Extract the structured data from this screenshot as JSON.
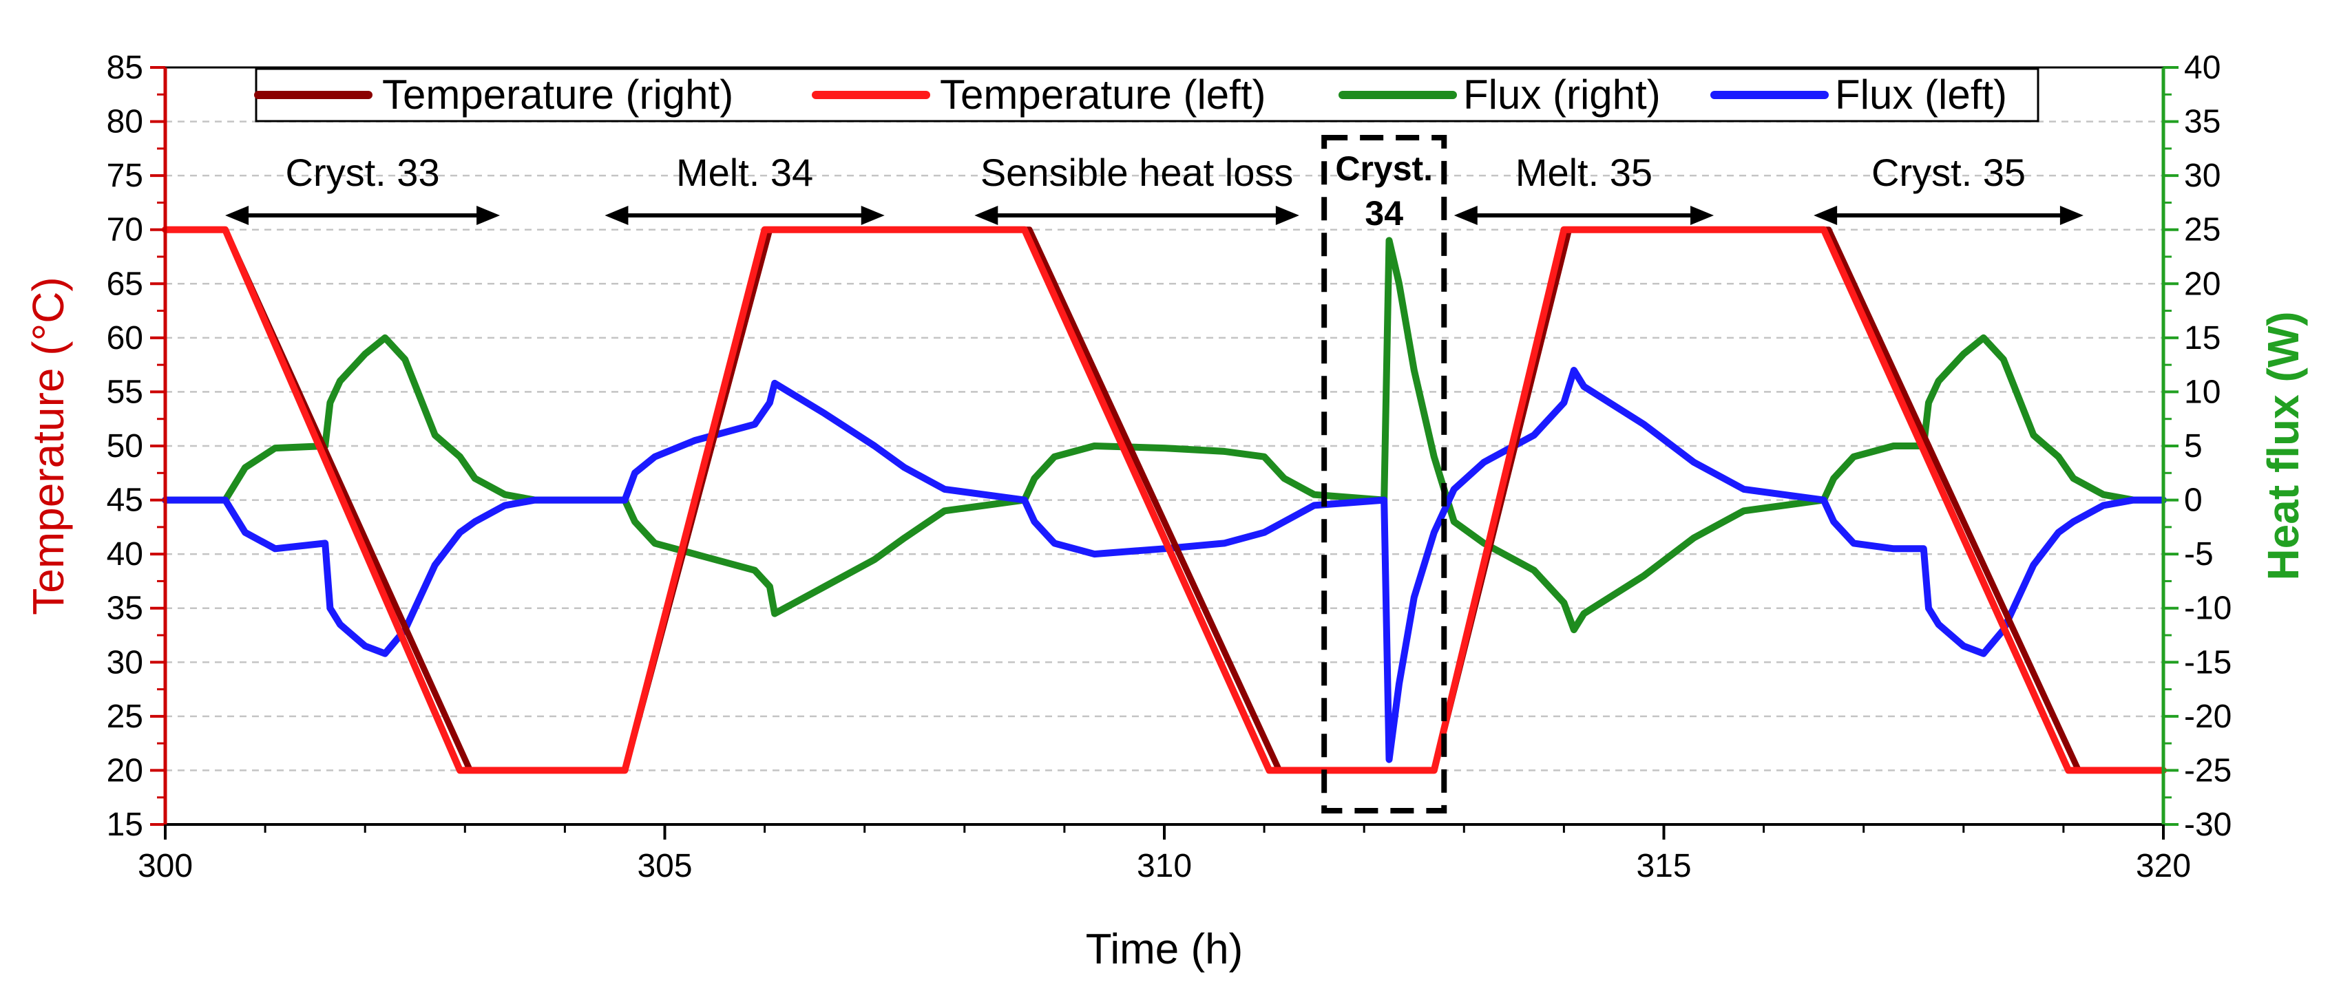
{
  "chart_data": {
    "type": "line",
    "xlabel": "Time (h)",
    "ylabel_left": "Temperature (°C)",
    "ylabel_right": "Heat flux (W)",
    "xlim": [
      300,
      320
    ],
    "ylim_left": [
      15,
      85
    ],
    "ylim_right": [
      -30,
      40
    ],
    "x_ticks": [
      "300",
      "305",
      "310",
      "315",
      "320"
    ],
    "y_ticks_left": [
      "15",
      "20",
      "25",
      "30",
      "35",
      "40",
      "45",
      "50",
      "55",
      "60",
      "65",
      "70",
      "75",
      "80",
      "85"
    ],
    "y_ticks_right": [
      "-30",
      "-25",
      "-20",
      "-15",
      "-10",
      "-5",
      "0",
      "5",
      "10",
      "15",
      "20",
      "25",
      "30",
      "35",
      "40"
    ],
    "grid": "horizontal dashed",
    "legend_position": "top",
    "colors": {
      "temp_right": "#8B0000",
      "temp_left": "#FF1A1A",
      "flux_right": "#1E8C1E",
      "flux_left": "#1A1AFF",
      "left_axis": "#CC0000",
      "right_axis": "#22A022"
    },
    "series": [
      {
        "name": "Temperature (right)",
        "axis": "left",
        "color": "#8B0000",
        "x": [
          300,
          300.6,
          303.05,
          304.6,
          306.05,
          308.65,
          311.15,
          312.7,
          314.05,
          316.65,
          319.15,
          320
        ],
        "y": [
          70,
          70,
          20,
          20,
          70,
          70,
          20,
          20,
          70,
          70,
          20,
          20
        ]
      },
      {
        "name": "Temperature (left)",
        "axis": "left",
        "color": "#FF1A1A",
        "x": [
          300,
          300.6,
          302.95,
          304.6,
          306.0,
          308.6,
          311.05,
          312.7,
          314.0,
          316.6,
          319.05,
          320
        ],
        "y": [
          70,
          70,
          20,
          20,
          70,
          70,
          20,
          20,
          70,
          70,
          20,
          20
        ]
      },
      {
        "name": "Flux (right)",
        "axis": "right",
        "color": "#1E8C1E",
        "x": [
          300,
          300.6,
          300.8,
          301.1,
          301.6,
          301.65,
          301.75,
          302.0,
          302.2,
          302.4,
          302.7,
          302.95,
          303.1,
          303.4,
          303.7,
          304.6,
          304.7,
          304.9,
          305.3,
          305.9,
          306.05,
          306.1,
          306.6,
          307.1,
          307.4,
          307.8,
          308.6,
          308.7,
          308.9,
          309.3,
          310.0,
          310.6,
          311.0,
          311.2,
          311.5,
          312.2,
          312.25,
          312.35,
          312.5,
          312.7,
          312.9,
          313.2,
          313.7,
          314.0,
          314.1,
          314.2,
          314.8,
          315.3,
          315.8,
          316.6,
          316.7,
          316.9,
          317.3,
          317.6,
          317.65,
          317.75,
          318.0,
          318.2,
          318.4,
          318.7,
          318.95,
          319.1,
          319.4,
          319.7,
          320
        ],
        "y": [
          0,
          0,
          3,
          4.8,
          5,
          9,
          11,
          13.5,
          15,
          13,
          6,
          4,
          2,
          0.5,
          0,
          0,
          -2,
          -4,
          -5,
          -6.5,
          -8,
          -10.5,
          -8,
          -5.5,
          -3.5,
          -1,
          0,
          2,
          4,
          5,
          4.8,
          4.5,
          4,
          2,
          0.5,
          0,
          24,
          20,
          12,
          4,
          -2,
          -4,
          -6.5,
          -9.5,
          -12,
          -10.5,
          -7,
          -3.5,
          -1,
          0,
          2,
          4,
          5,
          5,
          9,
          11,
          13.5,
          15,
          13,
          6,
          4,
          2,
          0.5,
          0,
          0
        ]
      },
      {
        "name": "Flux (left)",
        "axis": "left",
        "color": "#1A1AFF",
        "x": [
          300,
          300.6,
          300.8,
          301.1,
          301.6,
          301.65,
          301.75,
          302.0,
          302.2,
          302.4,
          302.7,
          302.95,
          303.1,
          303.4,
          303.7,
          304.6,
          304.7,
          304.9,
          305.3,
          305.9,
          306.05,
          306.1,
          306.6,
          307.1,
          307.4,
          307.8,
          308.6,
          308.7,
          308.9,
          309.3,
          310.0,
          310.6,
          311.0,
          311.2,
          311.5,
          312.2,
          312.25,
          312.35,
          312.5,
          312.7,
          312.9,
          313.2,
          313.7,
          314.0,
          314.1,
          314.2,
          314.8,
          315.3,
          315.8,
          316.6,
          316.7,
          316.9,
          317.3,
          317.6,
          317.65,
          317.75,
          318.0,
          318.2,
          318.4,
          318.7,
          318.95,
          319.1,
          319.4,
          319.7,
          320
        ],
        "y": [
          45,
          45,
          42,
          40.5,
          41,
          35,
          33.5,
          31.5,
          30.8,
          33,
          39,
          42,
          43,
          44.5,
          45,
          45,
          47.5,
          49,
          50.5,
          52,
          54,
          55.8,
          53,
          50,
          48,
          46,
          45,
          43,
          41,
          40,
          40.5,
          41,
          42,
          43,
          44.5,
          45,
          21,
          28,
          36,
          42,
          46,
          48.5,
          51,
          54,
          57,
          55.5,
          52,
          48.5,
          46,
          45,
          43,
          41,
          40.5,
          40.5,
          35,
          33.5,
          31.5,
          30.8,
          33,
          39,
          42,
          43,
          44.5,
          45,
          45
        ]
      }
    ],
    "annotations": [
      {
        "label": "Cryst. 33",
        "x_start": 300.6,
        "x_end": 303.35
      },
      {
        "label": "Melt. 34",
        "x_start": 304.4,
        "x_end": 307.2
      },
      {
        "label": "Sensible heat loss",
        "x_start": 308.1,
        "x_end": 311.35
      },
      {
        "label_line1": "Cryst.",
        "label_line2": "34",
        "box_x": [
          311.6,
          312.8
        ]
      },
      {
        "label": "Melt. 35",
        "x_start": 312.9,
        "x_end": 315.5
      },
      {
        "label": "Cryst. 35",
        "x_start": 316.5,
        "x_end": 319.2
      }
    ]
  }
}
